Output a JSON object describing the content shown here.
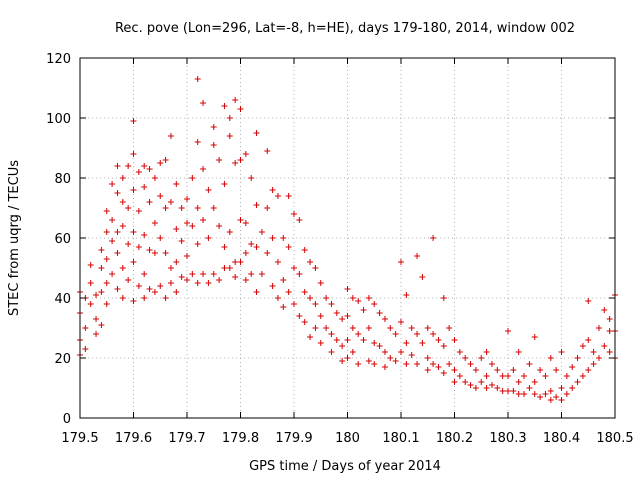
{
  "chart_data": {
    "type": "scatter",
    "title": "Rec. pove (Lon=296, Lat=-8, h=HE), days 179-180, 2014, window 002",
    "xlabel": "GPS time / Days of year 2014",
    "ylabel": "STEC from uqrg / TECUs",
    "xlim": [
      179.5,
      180.5
    ],
    "ylim": [
      0,
      120
    ],
    "grid": true,
    "x_ticks": [
      179.5,
      179.6,
      179.7,
      179.8,
      179.9,
      180.0,
      180.1,
      180.2,
      180.3,
      180.4,
      180.5
    ],
    "x_tick_labels": [
      "179.5",
      "179.6",
      "179.7",
      "179.8",
      "179.9",
      "180",
      "180.1",
      "180.2",
      "180.3",
      "180.4",
      "180.5"
    ],
    "y_ticks": [
      0,
      20,
      40,
      60,
      80,
      100,
      120
    ],
    "y_tick_labels": [
      "0",
      "20",
      "40",
      "60",
      "80",
      "100",
      "120"
    ],
    "marker_color": "#d40000",
    "marker": "+",
    "series": [
      {
        "name": "STEC",
        "points": [
          [
            179.5,
            35
          ],
          [
            179.5,
            42
          ],
          [
            179.5,
            26
          ],
          [
            179.5,
            21
          ],
          [
            179.51,
            40
          ],
          [
            179.51,
            30
          ],
          [
            179.51,
            23
          ],
          [
            179.52,
            51
          ],
          [
            179.52,
            45
          ],
          [
            179.52,
            38
          ],
          [
            179.53,
            41
          ],
          [
            179.53,
            33
          ],
          [
            179.53,
            28
          ],
          [
            179.54,
            56
          ],
          [
            179.54,
            50
          ],
          [
            179.54,
            42
          ],
          [
            179.54,
            31
          ],
          [
            179.55,
            69
          ],
          [
            179.55,
            62
          ],
          [
            179.55,
            53
          ],
          [
            179.55,
            45
          ],
          [
            179.55,
            38
          ],
          [
            179.56,
            78
          ],
          [
            179.56,
            66
          ],
          [
            179.56,
            59
          ],
          [
            179.56,
            48
          ],
          [
            179.57,
            84
          ],
          [
            179.57,
            75
          ],
          [
            179.57,
            62
          ],
          [
            179.57,
            55
          ],
          [
            179.57,
            43
          ],
          [
            179.58,
            80
          ],
          [
            179.58,
            72
          ],
          [
            179.58,
            64
          ],
          [
            179.58,
            50
          ],
          [
            179.58,
            40
          ],
          [
            179.59,
            84
          ],
          [
            179.59,
            70
          ],
          [
            179.59,
            58
          ],
          [
            179.59,
            46
          ],
          [
            179.6,
            99
          ],
          [
            179.6,
            88
          ],
          [
            179.6,
            76
          ],
          [
            179.6,
            62
          ],
          [
            179.6,
            52
          ],
          [
            179.6,
            39
          ],
          [
            179.61,
            82
          ],
          [
            179.61,
            69
          ],
          [
            179.61,
            57
          ],
          [
            179.61,
            44
          ],
          [
            179.62,
            84
          ],
          [
            179.62,
            77
          ],
          [
            179.62,
            61
          ],
          [
            179.62,
            48
          ],
          [
            179.62,
            40
          ],
          [
            179.63,
            83
          ],
          [
            179.63,
            72
          ],
          [
            179.63,
            56
          ],
          [
            179.63,
            43
          ],
          [
            179.64,
            80
          ],
          [
            179.64,
            65
          ],
          [
            179.64,
            55
          ],
          [
            179.64,
            42
          ],
          [
            179.65,
            85
          ],
          [
            179.65,
            74
          ],
          [
            179.65,
            60
          ],
          [
            179.65,
            44
          ],
          [
            179.66,
            86
          ],
          [
            179.66,
            70
          ],
          [
            179.66,
            55
          ],
          [
            179.66,
            40
          ],
          [
            179.67,
            94
          ],
          [
            179.67,
            72
          ],
          [
            179.67,
            50
          ],
          [
            179.67,
            45
          ],
          [
            179.68,
            78
          ],
          [
            179.68,
            63
          ],
          [
            179.68,
            52
          ],
          [
            179.68,
            42
          ],
          [
            179.69,
            70
          ],
          [
            179.69,
            59
          ],
          [
            179.69,
            47
          ],
          [
            179.7,
            73
          ],
          [
            179.7,
            65
          ],
          [
            179.7,
            54
          ],
          [
            179.7,
            46
          ],
          [
            179.71,
            80
          ],
          [
            179.71,
            64
          ],
          [
            179.71,
            48
          ],
          [
            179.72,
            113
          ],
          [
            179.72,
            92
          ],
          [
            179.72,
            70
          ],
          [
            179.72,
            58
          ],
          [
            179.72,
            45
          ],
          [
            179.73,
            105
          ],
          [
            179.73,
            83
          ],
          [
            179.73,
            66
          ],
          [
            179.73,
            48
          ],
          [
            179.74,
            76
          ],
          [
            179.74,
            60
          ],
          [
            179.74,
            45
          ],
          [
            179.75,
            97
          ],
          [
            179.75,
            91
          ],
          [
            179.75,
            70
          ],
          [
            179.75,
            48
          ],
          [
            179.76,
            86
          ],
          [
            179.76,
            64
          ],
          [
            179.76,
            46
          ],
          [
            179.77,
            104
          ],
          [
            179.77,
            78
          ],
          [
            179.77,
            57
          ],
          [
            179.77,
            50
          ],
          [
            179.78,
            100
          ],
          [
            179.78,
            94
          ],
          [
            179.78,
            62
          ],
          [
            179.78,
            50
          ],
          [
            179.79,
            106
          ],
          [
            179.79,
            85
          ],
          [
            179.79,
            52
          ],
          [
            179.79,
            47
          ],
          [
            179.8,
            103
          ],
          [
            179.8,
            86
          ],
          [
            179.8,
            66
          ],
          [
            179.8,
            52
          ],
          [
            179.81,
            88
          ],
          [
            179.81,
            65
          ],
          [
            179.81,
            55
          ],
          [
            179.81,
            46
          ],
          [
            179.82,
            80
          ],
          [
            179.82,
            58
          ],
          [
            179.82,
            48
          ],
          [
            179.83,
            95
          ],
          [
            179.83,
            71
          ],
          [
            179.83,
            57
          ],
          [
            179.83,
            42
          ],
          [
            179.84,
            62
          ],
          [
            179.84,
            48
          ],
          [
            179.85,
            89
          ],
          [
            179.85,
            70
          ],
          [
            179.85,
            55
          ],
          [
            179.86,
            76
          ],
          [
            179.86,
            60
          ],
          [
            179.86,
            44
          ],
          [
            179.87,
            74
          ],
          [
            179.87,
            52
          ],
          [
            179.87,
            40
          ],
          [
            179.88,
            60
          ],
          [
            179.88,
            46
          ],
          [
            179.88,
            37
          ],
          [
            179.89,
            74
          ],
          [
            179.89,
            57
          ],
          [
            179.89,
            42
          ],
          [
            179.9,
            68
          ],
          [
            179.9,
            50
          ],
          [
            179.9,
            38
          ],
          [
            179.91,
            66
          ],
          [
            179.91,
            48
          ],
          [
            179.91,
            34
          ],
          [
            179.92,
            56
          ],
          [
            179.92,
            42
          ],
          [
            179.92,
            32
          ],
          [
            179.93,
            52
          ],
          [
            179.93,
            40
          ],
          [
            179.93,
            27
          ],
          [
            179.94,
            50
          ],
          [
            179.94,
            38
          ],
          [
            179.94,
            30
          ],
          [
            179.95,
            45
          ],
          [
            179.95,
            34
          ],
          [
            179.95,
            25
          ],
          [
            179.96,
            40
          ],
          [
            179.96,
            30
          ],
          [
            179.97,
            38
          ],
          [
            179.97,
            28
          ],
          [
            179.97,
            22
          ],
          [
            179.98,
            35
          ],
          [
            179.98,
            26
          ],
          [
            179.99,
            33
          ],
          [
            179.99,
            24
          ],
          [
            179.99,
            19
          ],
          [
            180.0,
            43
          ],
          [
            180.0,
            34
          ],
          [
            180.0,
            26
          ],
          [
            180.0,
            20
          ],
          [
            180.01,
            40
          ],
          [
            180.01,
            30
          ],
          [
            180.01,
            22
          ],
          [
            180.02,
            39
          ],
          [
            180.02,
            28
          ],
          [
            180.02,
            18
          ],
          [
            180.03,
            36
          ],
          [
            180.03,
            26
          ],
          [
            180.04,
            40
          ],
          [
            180.04,
            30
          ],
          [
            180.04,
            19
          ],
          [
            180.05,
            38
          ],
          [
            180.05,
            25
          ],
          [
            180.05,
            18
          ],
          [
            180.06,
            35
          ],
          [
            180.06,
            24
          ],
          [
            180.07,
            33
          ],
          [
            180.07,
            22
          ],
          [
            180.07,
            17
          ],
          [
            180.08,
            30
          ],
          [
            180.08,
            20
          ],
          [
            180.09,
            28
          ],
          [
            180.09,
            19
          ],
          [
            180.1,
            52
          ],
          [
            180.1,
            32
          ],
          [
            180.1,
            22
          ],
          [
            180.11,
            41
          ],
          [
            180.11,
            25
          ],
          [
            180.11,
            18
          ],
          [
            180.12,
            30
          ],
          [
            180.12,
            21
          ],
          [
            180.13,
            54
          ],
          [
            180.13,
            28
          ],
          [
            180.13,
            18
          ],
          [
            180.14,
            47
          ],
          [
            180.14,
            25
          ],
          [
            180.15,
            30
          ],
          [
            180.15,
            20
          ],
          [
            180.15,
            16
          ],
          [
            180.16,
            60
          ],
          [
            180.16,
            28
          ],
          [
            180.16,
            18
          ],
          [
            180.17,
            26
          ],
          [
            180.17,
            17
          ],
          [
            180.18,
            40
          ],
          [
            180.18,
            24
          ],
          [
            180.18,
            15
          ],
          [
            180.19,
            30
          ],
          [
            180.19,
            18
          ],
          [
            180.2,
            26
          ],
          [
            180.2,
            16
          ],
          [
            180.2,
            12
          ],
          [
            180.21,
            22
          ],
          [
            180.21,
            14
          ],
          [
            180.22,
            20
          ],
          [
            180.22,
            12
          ],
          [
            180.23,
            18
          ],
          [
            180.23,
            11
          ],
          [
            180.24,
            16
          ],
          [
            180.24,
            10
          ],
          [
            180.25,
            20
          ],
          [
            180.25,
            12
          ],
          [
            180.26,
            22
          ],
          [
            180.26,
            14
          ],
          [
            180.26,
            10
          ],
          [
            180.27,
            18
          ],
          [
            180.27,
            11
          ],
          [
            180.28,
            16
          ],
          [
            180.28,
            10
          ],
          [
            180.29,
            14
          ],
          [
            180.29,
            9
          ],
          [
            180.3,
            29
          ],
          [
            180.3,
            14
          ],
          [
            180.3,
            9
          ],
          [
            180.31,
            16
          ],
          [
            180.31,
            9
          ],
          [
            180.32,
            22
          ],
          [
            180.32,
            12
          ],
          [
            180.32,
            8
          ],
          [
            180.33,
            14
          ],
          [
            180.33,
            8
          ],
          [
            180.34,
            18
          ],
          [
            180.34,
            10
          ],
          [
            180.35,
            27
          ],
          [
            180.35,
            12
          ],
          [
            180.35,
            8
          ],
          [
            180.36,
            16
          ],
          [
            180.36,
            7
          ],
          [
            180.37,
            14
          ],
          [
            180.37,
            8
          ],
          [
            180.38,
            20
          ],
          [
            180.38,
            9
          ],
          [
            180.38,
            6
          ],
          [
            180.39,
            16
          ],
          [
            180.39,
            7
          ],
          [
            180.4,
            22
          ],
          [
            180.4,
            10
          ],
          [
            180.4,
            6
          ],
          [
            180.41,
            14
          ],
          [
            180.41,
            8
          ],
          [
            180.42,
            17
          ],
          [
            180.42,
            10
          ],
          [
            180.43,
            20
          ],
          [
            180.43,
            12
          ],
          [
            180.44,
            24
          ],
          [
            180.44,
            14
          ],
          [
            180.45,
            39
          ],
          [
            180.45,
            26
          ],
          [
            180.45,
            16
          ],
          [
            180.46,
            22
          ],
          [
            180.46,
            18
          ],
          [
            180.47,
            30
          ],
          [
            180.47,
            20
          ],
          [
            180.48,
            36
          ],
          [
            180.48,
            24
          ],
          [
            180.49,
            33
          ],
          [
            180.49,
            29
          ],
          [
            180.49,
            22
          ],
          [
            180.5,
            41
          ],
          [
            180.5,
            29
          ],
          [
            180.5,
            20
          ]
        ]
      }
    ]
  }
}
